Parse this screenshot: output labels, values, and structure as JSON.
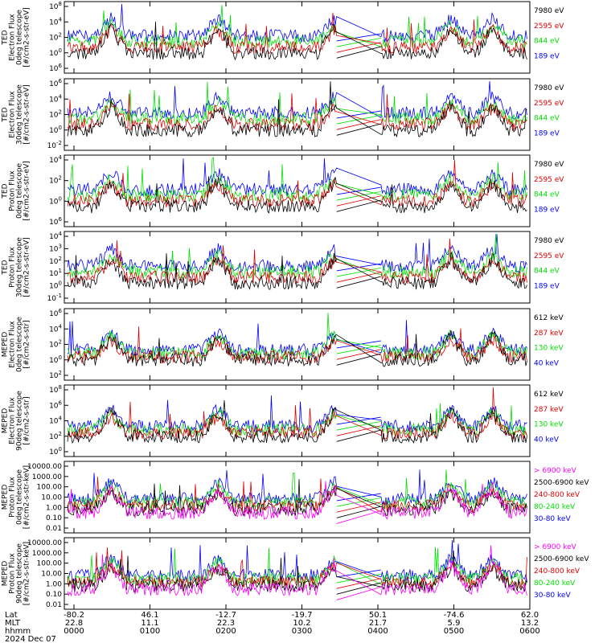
{
  "colors": {
    "black": "#000000",
    "red": "#e00000",
    "green": "#00e000",
    "blue": "#0000ff",
    "magenta": "#ff00ff"
  },
  "footer": {
    "row_labels": [
      "Lat",
      "MLT",
      "hhmm"
    ],
    "date": "2024 Dec 07",
    "columns": [
      {
        "lat": "-80.2",
        "mlt": "22.8",
        "hhmm": "0000"
      },
      {
        "lat": "46.1",
        "mlt": "11.1",
        "hhmm": "0100"
      },
      {
        "lat": "-12.7",
        "mlt": "22.3",
        "hhmm": "0200"
      },
      {
        "lat": "-19.7",
        "mlt": "10.2",
        "hhmm": "0300"
      },
      {
        "lat": "50.1",
        "mlt": "21.7",
        "hhmm": "0400"
      },
      {
        "lat": "-74.6",
        "mlt": "5.9",
        "hhmm": "0500"
      },
      {
        "lat": "62.0",
        "mlt": "13.2",
        "hhmm": "0600"
      }
    ]
  },
  "chart_data": [
    {
      "type": "line",
      "ylabel": [
        "TED",
        "Electron Flux",
        "0deg telescope",
        "[#/cm2-s-str-eV]"
      ],
      "log": true,
      "ylim_exp": [
        -6,
        8
      ],
      "yticks": [
        "10^8",
        "10^4",
        "10^2",
        "10^0",
        "10^6"
      ],
      "series": [
        {
          "name": "7980 eV",
          "color": "black"
        },
        {
          "name": "2595 eV",
          "color": "red"
        },
        {
          "name": "844 eV",
          "color": "green"
        },
        {
          "name": "189 eV",
          "color": "blue"
        }
      ]
    },
    {
      "type": "line",
      "ylabel": [
        "TED",
        "Electron Flux",
        "30deg telescope",
        "[#/cm2-s-str-eV]"
      ],
      "log": true,
      "yticks": [
        "10^6",
        "10^4",
        "10^2",
        "10^0",
        "10^-2"
      ],
      "series": [
        {
          "name": "7980 eV",
          "color": "black"
        },
        {
          "name": "2595 eV",
          "color": "red"
        },
        {
          "name": "844 eV",
          "color": "green"
        },
        {
          "name": "189 eV",
          "color": "blue"
        }
      ]
    },
    {
      "type": "line",
      "ylabel": [
        "TED",
        "Proton Flux",
        "0deg telescope",
        "[#/cm2-s-str-eV]"
      ],
      "log": true,
      "yticks": [
        "10^4",
        "10^2",
        "10^0",
        "10^6"
      ],
      "series": [
        {
          "name": "7980 eV",
          "color": "black"
        },
        {
          "name": "2595 eV",
          "color": "red"
        },
        {
          "name": "844 eV",
          "color": "green"
        },
        {
          "name": "189 eV",
          "color": "blue"
        }
      ]
    },
    {
      "type": "line",
      "ylabel": [
        "TED",
        "Proton Flux",
        "30deg telescope",
        "[#/cm2-s-str-eV]"
      ],
      "log": true,
      "yticks": [
        "10^4",
        "10^3",
        "10^2",
        "10^1",
        "10^0",
        "10^-1"
      ],
      "series": [
        {
          "name": "7980 eV",
          "color": "black"
        },
        {
          "name": "2595 eV",
          "color": "red"
        },
        {
          "name": "844 eV",
          "color": "green"
        },
        {
          "name": "189 eV",
          "color": "blue"
        }
      ]
    },
    {
      "type": "line",
      "ylabel": [
        "MEPED",
        "Electron Flux",
        "0deg telescope",
        "[#/cm2-s-str]"
      ],
      "log": true,
      "yticks": [
        "10^6",
        "10^4",
        "10^2",
        "10^0",
        "10^2"
      ],
      "series": [
        {
          "name": "612 keV",
          "color": "black"
        },
        {
          "name": "287 keV",
          "color": "red"
        },
        {
          "name": "130 keV",
          "color": "green"
        },
        {
          "name": "40 keV",
          "color": "blue"
        }
      ]
    },
    {
      "type": "line",
      "ylabel": [
        "MEPED",
        "Electron Flux",
        "90deg telescope",
        "[#/cm2-s-str]"
      ],
      "log": true,
      "yticks": [
        "10^8",
        "10^6",
        "10^4",
        "10^2",
        "10^0"
      ],
      "series": [
        {
          "name": "612 keV",
          "color": "black"
        },
        {
          "name": "287 keV",
          "color": "red"
        },
        {
          "name": "130 keV",
          "color": "green"
        },
        {
          "name": "40 keV",
          "color": "blue"
        }
      ]
    },
    {
      "type": "line",
      "ylabel": [
        "MEPED",
        "Proton Flux",
        "0deg telescope",
        "[#/cm2-s-str-keV]"
      ],
      "log": true,
      "yticks": [
        "10000.00",
        "1000.00",
        "100.00",
        "10.00",
        "1.00",
        "0.10",
        "0.01"
      ],
      "series": [
        {
          "name": "> 6900 keV",
          "color": "magenta"
        },
        {
          "name": "2500-6900 keV",
          "color": "black"
        },
        {
          "name": "240-800 keV",
          "color": "red"
        },
        {
          "name": "80-240 keV",
          "color": "green"
        },
        {
          "name": "30-80 keV",
          "color": "blue"
        }
      ]
    },
    {
      "type": "line",
      "ylabel": [
        "MEPED",
        "Proton Flux",
        "90deg telescope",
        "[#/cm2-s-str-keV]"
      ],
      "log": true,
      "yticks": [
        "10000.00",
        "1000.00",
        "100.00",
        "10.00",
        "1.00",
        "0.10",
        "0.01"
      ],
      "series": [
        {
          "name": "> 6900 keV",
          "color": "magenta"
        },
        {
          "name": "2500-6900 keV",
          "color": "black"
        },
        {
          "name": "240-800 keV",
          "color": "red"
        },
        {
          "name": "80-240 keV",
          "color": "green"
        },
        {
          "name": "30-80 keV",
          "color": "blue"
        }
      ]
    }
  ]
}
